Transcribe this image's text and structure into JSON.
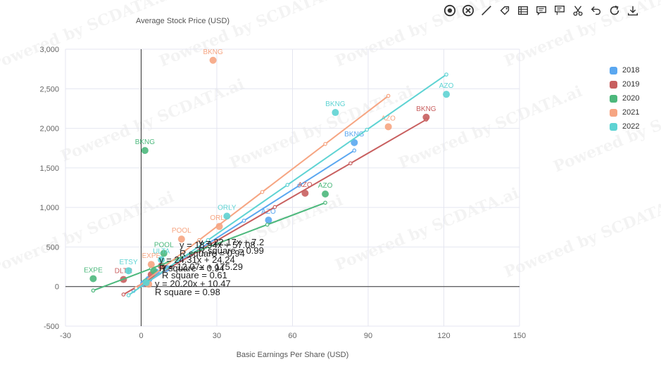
{
  "toolbar": {
    "icons": [
      "target-icon",
      "close-circle-icon",
      "line-icon",
      "tag-icon",
      "list-icon",
      "comment-icon",
      "flag-comment-icon",
      "scissors-icon",
      "undo-icon",
      "refresh-icon",
      "download-icon"
    ]
  },
  "watermark_text": "Powered by SCDATA.ai",
  "chart_data": {
    "type": "scatter",
    "title": "",
    "xlabel": "Basic Earnings Per Share (USD)",
    "ylabel": "Average Stock Price (USD)",
    "xlim": [
      -30,
      150
    ],
    "ylim": [
      -500,
      3000
    ],
    "xticks": [
      -30,
      0,
      30,
      60,
      90,
      120,
      150
    ],
    "yticks": [
      -500,
      0,
      500,
      1000,
      1500,
      2000,
      2500,
      3000
    ],
    "xtick_labels": [
      "-30",
      "0",
      "30",
      "60",
      "90",
      "120",
      "150"
    ],
    "ytick_labels": [
      "-500",
      "0",
      "500",
      "1,000",
      "1,500",
      "2,000",
      "2,500",
      "3,000"
    ],
    "grid": true,
    "legend_position": "right",
    "series": [
      {
        "name": "2018",
        "color": "#5aa7f0",
        "points": [
          {
            "x": 84.5,
            "y": 1820,
            "label": "BKNG"
          },
          {
            "x": 50.5,
            "y": 840,
            "label": "AZO"
          },
          {
            "x": 6,
            "y": 180,
            "label": ""
          },
          {
            "x": 3,
            "y": 90,
            "label": ""
          },
          {
            "x": 1,
            "y": 40,
            "label": ""
          },
          {
            "x": 10,
            "y": 230,
            "label": ""
          }
        ],
        "trendline": {
          "x": [
            -3,
            84.5
          ],
          "y": [
            -55,
            1720
          ]
        },
        "equation": "y = 20.20x + 10.47",
        "r_square": "R square = 0.98"
      },
      {
        "name": "2019",
        "color": "#c85f5f",
        "points": [
          {
            "x": 113,
            "y": 2140,
            "label": "BKNG"
          },
          {
            "x": 65,
            "y": 1180,
            "label": "AZO"
          },
          {
            "x": -7,
            "y": 90,
            "label": "DLTR"
          },
          {
            "x": 4,
            "y": 150,
            "label": ""
          },
          {
            "x": 2,
            "y": 40,
            "label": ""
          },
          {
            "x": 8,
            "y": 260,
            "label": ""
          }
        ],
        "trendline": {
          "x": [
            -7,
            113
          ],
          "y": [
            -100,
            2110
          ]
        },
        "equation": "y = 18.94x + 57.08",
        "r_square": "R square = 0.94"
      },
      {
        "name": "2020",
        "color": "#4cb87c",
        "points": [
          {
            "x": 1.5,
            "y": 1720,
            "label": "BKNG"
          },
          {
            "x": 73,
            "y": 1170,
            "label": "AZO"
          },
          {
            "x": -19,
            "y": 100,
            "label": "EXPE"
          },
          {
            "x": 9,
            "y": 420,
            "label": "POOL"
          },
          {
            "x": 5,
            "y": 200,
            "label": ""
          },
          {
            "x": 2,
            "y": 60,
            "label": ""
          }
        ],
        "trendline": {
          "x": [
            -19,
            73
          ],
          "y": [
            -50,
            1060
          ]
        },
        "equation": "y = 12.07x + 175.29",
        "r_square": "R square = 0.61"
      },
      {
        "name": "2021",
        "color": "#f6a582",
        "points": [
          {
            "x": 28.5,
            "y": 2860,
            "label": "BKNG"
          },
          {
            "x": 98,
            "y": 2020,
            "label": "AZO"
          },
          {
            "x": 31,
            "y": 760,
            "label": "ORLY"
          },
          {
            "x": 16,
            "y": 600,
            "label": "POOL"
          },
          {
            "x": 4,
            "y": 280,
            "label": "EXPE"
          },
          {
            "x": 3,
            "y": 30,
            "label": ""
          }
        ],
        "trendline": {
          "x": [
            -2,
            98
          ],
          "y": [
            -20,
            2410
          ]
        },
        "equation": "y = 24.31x + 24.24",
        "r_square": "R square = 0.94"
      },
      {
        "name": "2022",
        "color": "#5ed3d3",
        "points": [
          {
            "x": 121,
            "y": 2430,
            "label": "AZO"
          },
          {
            "x": 77,
            "y": 2200,
            "label": "BKNG"
          },
          {
            "x": 34,
            "y": 890,
            "label": "ORLY"
          },
          {
            "x": 8,
            "y": 340,
            "label": "ULTA"
          },
          {
            "x": -5,
            "y": 200,
            "label": "ETSY"
          },
          {
            "x": 2,
            "y": 50,
            "label": ""
          }
        ],
        "trendline": {
          "x": [
            -5,
            121
          ],
          "y": [
            -110,
            2680
          ]
        },
        "equation": "y = 22.17x + 7.2",
        "r_square": "R square = 0.99"
      }
    ]
  }
}
